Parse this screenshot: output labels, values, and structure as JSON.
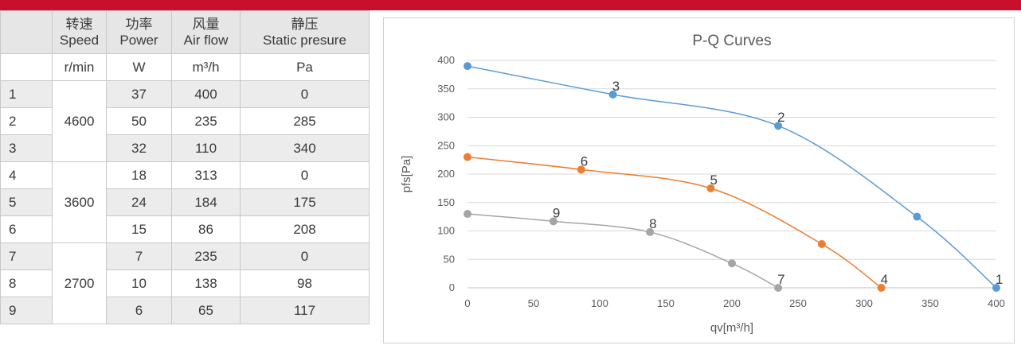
{
  "table": {
    "headers": [
      {
        "zh": "",
        "en": ""
      },
      {
        "zh": "转速",
        "en": "Speed"
      },
      {
        "zh": "功率",
        "en": "Power"
      },
      {
        "zh": "风量",
        "en": "Air flow"
      },
      {
        "zh": "静压",
        "en": "Static presure"
      }
    ],
    "units": [
      "",
      "r/min",
      "W",
      "m³/h",
      "Pa"
    ],
    "groups": [
      {
        "speed": "4600",
        "rows": [
          {
            "idx": "1",
            "power": "37",
            "flow": "400",
            "pressure": "0"
          },
          {
            "idx": "2",
            "power": "50",
            "flow": "235",
            "pressure": "285"
          },
          {
            "idx": "3",
            "power": "32",
            "flow": "110",
            "pressure": "340"
          }
        ]
      },
      {
        "speed": "3600",
        "rows": [
          {
            "idx": "4",
            "power": "18",
            "flow": "313",
            "pressure": "0"
          },
          {
            "idx": "5",
            "power": "24",
            "flow": "184",
            "pressure": "175"
          },
          {
            "idx": "6",
            "power": "15",
            "flow": "86",
            "pressure": "208"
          }
        ]
      },
      {
        "speed": "2700",
        "rows": [
          {
            "idx": "7",
            "power": "7",
            "flow": "235",
            "pressure": "0"
          },
          {
            "idx": "8",
            "power": "10",
            "flow": "138",
            "pressure": "98"
          },
          {
            "idx": "9",
            "power": "6",
            "flow": "65",
            "pressure": "117"
          }
        ]
      }
    ]
  },
  "chart_data": {
    "type": "line",
    "title": "P-Q Curves",
    "xlabel": "qv[m³/h]",
    "ylabel": "pfs[Pa]",
    "xlim": [
      0,
      400
    ],
    "ylim": [
      0,
      400
    ],
    "xticks": [
      0,
      50,
      100,
      150,
      200,
      250,
      300,
      350,
      400
    ],
    "yticks": [
      0,
      50,
      100,
      150,
      200,
      250,
      300,
      350,
      400
    ],
    "grid": "horizontal",
    "series": [
      {
        "color": "#5b9bd5",
        "points": [
          [
            0,
            390
          ],
          [
            110,
            340
          ],
          [
            235,
            285
          ],
          [
            340,
            125
          ],
          [
            400,
            0
          ]
        ],
        "labels": [
          {
            "text": "3",
            "point": 1
          },
          {
            "text": "2",
            "point": 2
          },
          {
            "text": "1",
            "point": 4
          }
        ]
      },
      {
        "color": "#ed7d31",
        "points": [
          [
            0,
            230
          ],
          [
            86,
            208
          ],
          [
            184,
            175
          ],
          [
            268,
            77
          ],
          [
            313,
            0
          ]
        ],
        "labels": [
          {
            "text": "6",
            "point": 1
          },
          {
            "text": "5",
            "point": 2
          },
          {
            "text": "4",
            "point": 4
          }
        ]
      },
      {
        "color": "#a5a5a5",
        "points": [
          [
            0,
            130
          ],
          [
            65,
            117
          ],
          [
            138,
            98
          ],
          [
            200,
            43
          ],
          [
            235,
            0
          ]
        ],
        "labels": [
          {
            "text": "9",
            "point": 1
          },
          {
            "text": "8",
            "point": 2
          },
          {
            "text": "7",
            "point": 4
          }
        ]
      }
    ]
  }
}
